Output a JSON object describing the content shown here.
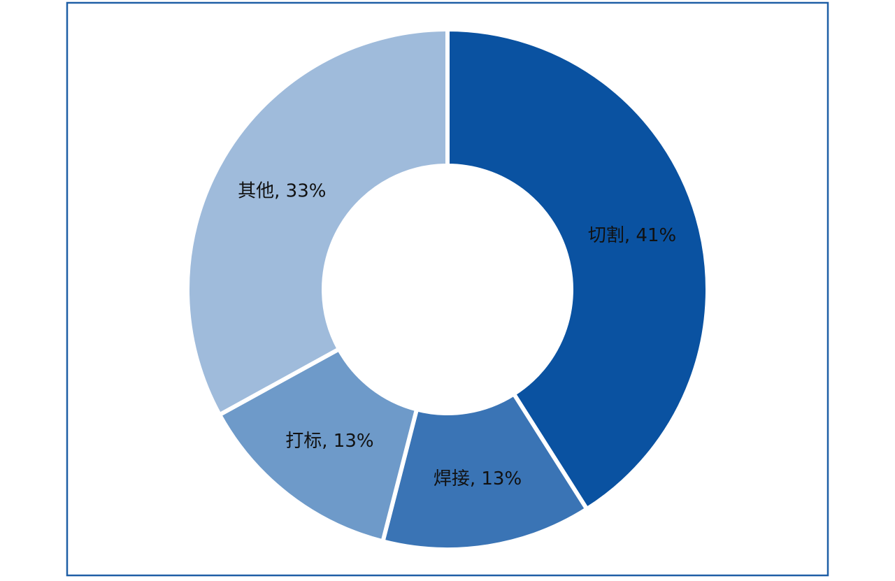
{
  "chart_data": {
    "type": "pie",
    "values": [
      41,
      13,
      13,
      33
    ],
    "value_labels": [
      "切割, 41%",
      "焊接, 13%",
      "打标, 13%",
      "其他, 33%"
    ],
    "colors": [
      "#0a52a1",
      "#3a74b5",
      "#6e9ac9",
      "#9fbbdb"
    ],
    "donut": true
  }
}
